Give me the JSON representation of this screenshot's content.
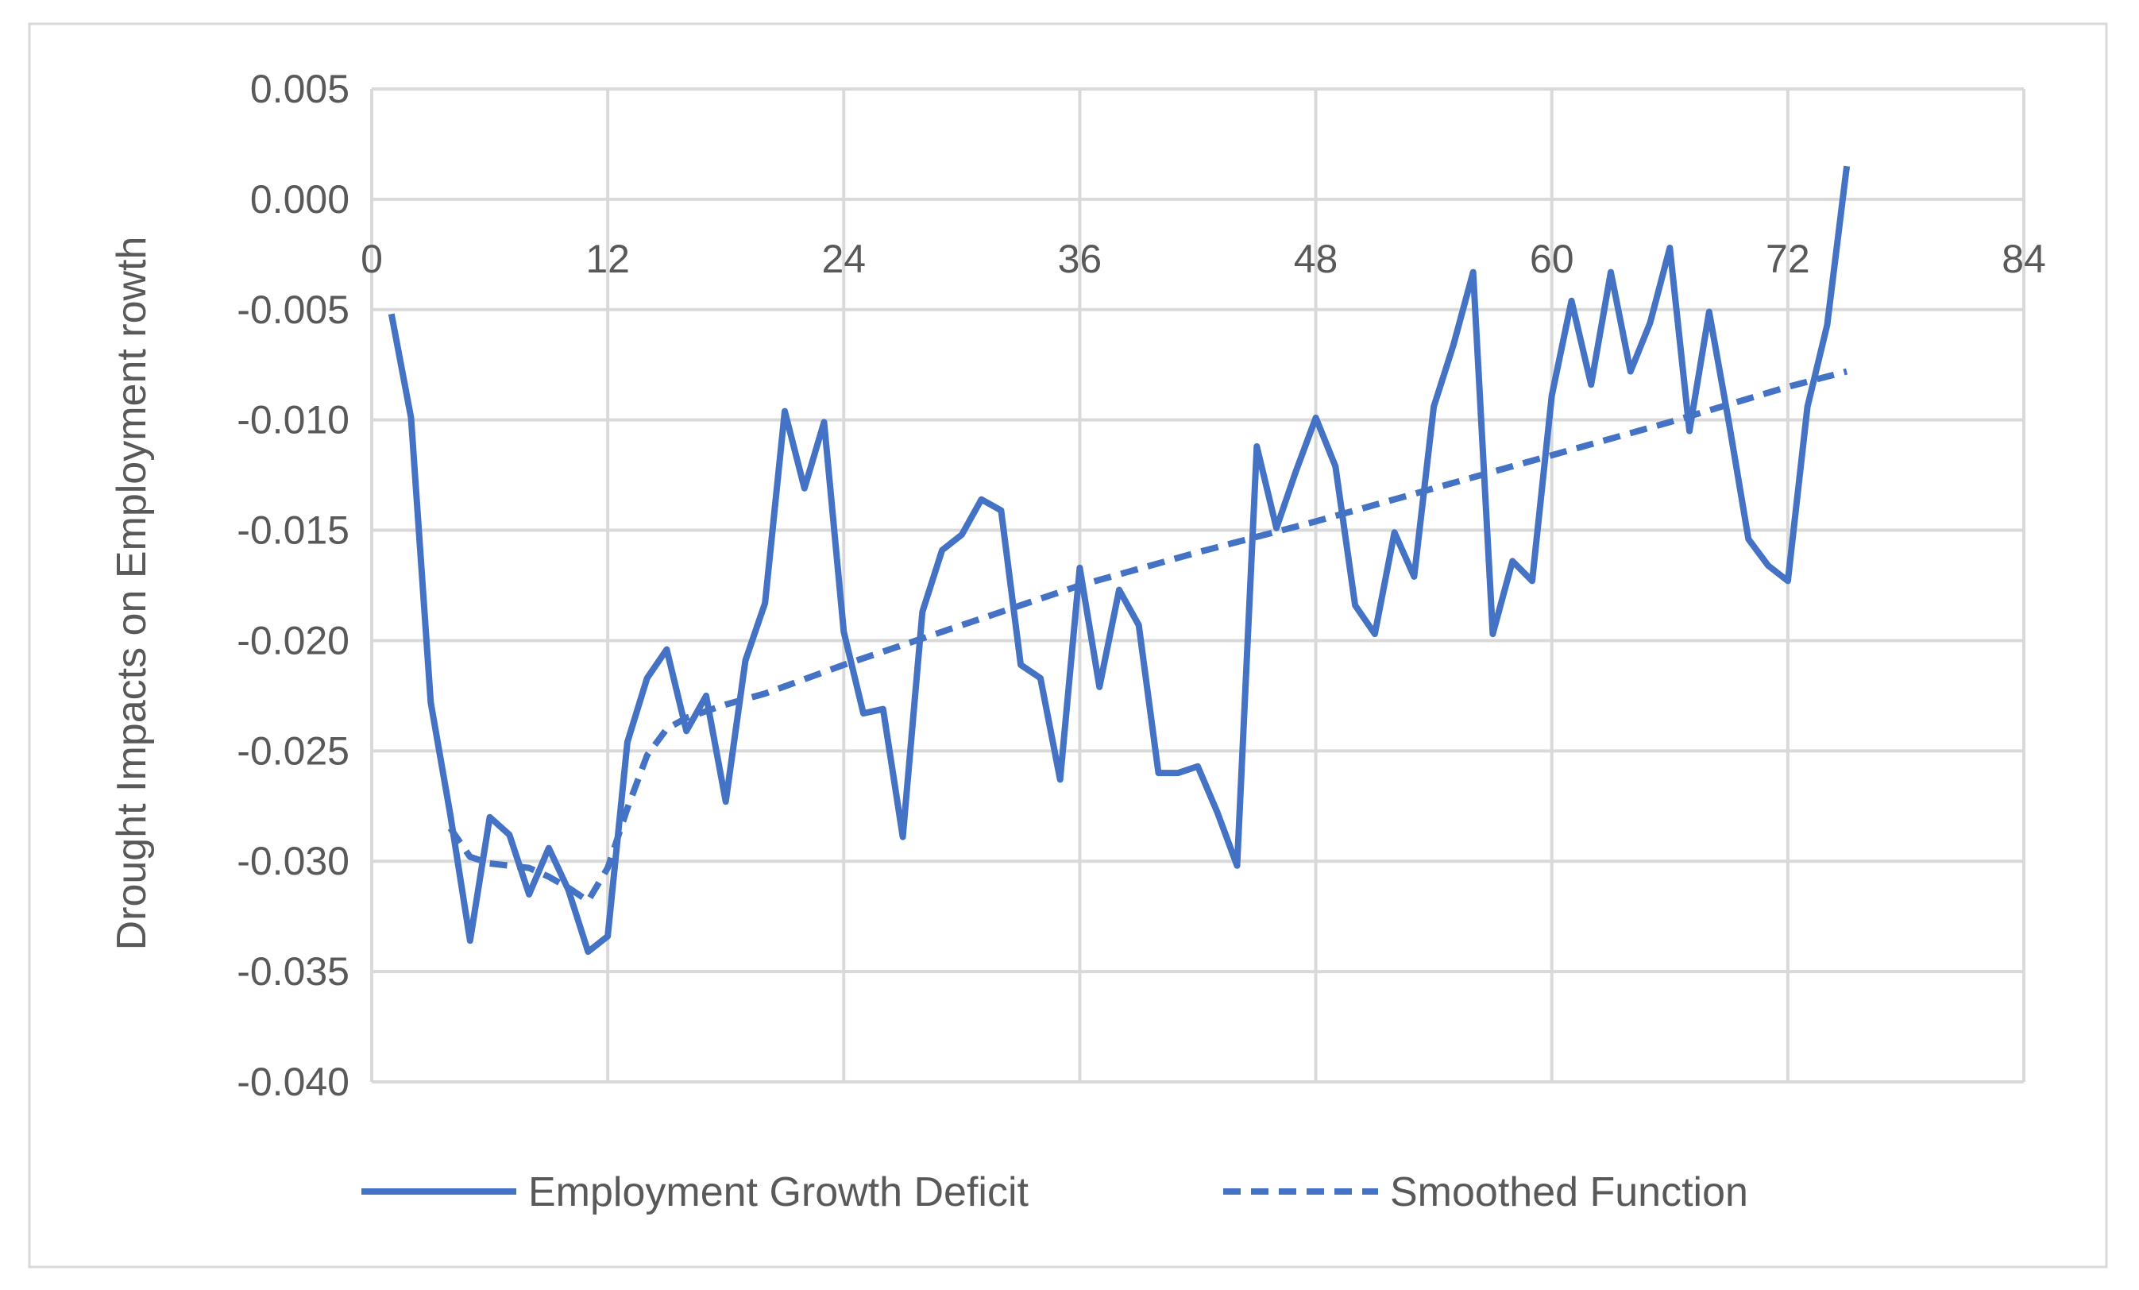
{
  "chart_data": {
    "type": "line",
    "title": "",
    "xlabel": "",
    "ylabel": "Drought  Impacts on Employment rowth",
    "xlim": [
      0,
      84
    ],
    "ylim": [
      -0.04,
      0.005
    ],
    "x_ticks": [
      0,
      12,
      24,
      36,
      48,
      60,
      72,
      84
    ],
    "x_tick_labels": [
      "0",
      "12",
      "24",
      "36",
      "48",
      "60",
      "72",
      "84"
    ],
    "y_ticks": [
      0.005,
      0.0,
      -0.005,
      -0.01,
      -0.015,
      -0.02,
      -0.025,
      -0.03,
      -0.035,
      -0.04
    ],
    "y_tick_labels": [
      "0.005",
      "0.000",
      "-0.005",
      "-0.010",
      "-0.015",
      "-0.020",
      "-0.025",
      "-0.030",
      "-0.035",
      "-0.040"
    ],
    "x_axis_at_y": 0,
    "grid": true,
    "legend_position": "bottom",
    "series": [
      {
        "name": "Employment Growth Deficit",
        "style": "solid",
        "color": "#4472c4",
        "x": [
          1,
          2,
          3,
          4,
          5,
          6,
          7,
          8,
          9,
          10,
          11,
          12,
          13,
          14,
          15,
          16,
          17,
          18,
          19,
          20,
          21,
          22,
          23,
          24,
          25,
          26,
          27,
          28,
          29,
          30,
          31,
          32,
          33,
          34,
          35,
          36,
          37,
          38,
          39,
          40,
          41,
          42,
          43,
          44,
          45,
          46,
          47,
          48,
          49,
          50,
          51,
          52,
          53,
          54,
          55,
          56,
          57,
          58,
          59,
          60,
          61,
          62,
          63,
          64,
          65,
          66,
          67,
          68,
          69,
          70,
          71,
          72,
          73,
          74,
          75
        ],
        "y": [
          -0.0052,
          -0.0099,
          -0.0228,
          -0.0279,
          -0.0336,
          -0.028,
          -0.0288,
          -0.0315,
          -0.0294,
          -0.0313,
          -0.0341,
          -0.0334,
          -0.0246,
          -0.0217,
          -0.0204,
          -0.0241,
          -0.0225,
          -0.0273,
          -0.0209,
          -0.0183,
          -0.0096,
          -0.0131,
          -0.0101,
          -0.0196,
          -0.0233,
          -0.0231,
          -0.0289,
          -0.0187,
          -0.0159,
          -0.0152,
          -0.0136,
          -0.0141,
          -0.0211,
          -0.0217,
          -0.0263,
          -0.0167,
          -0.0221,
          -0.0177,
          -0.0193,
          -0.026,
          -0.026,
          -0.0257,
          -0.0278,
          -0.0302,
          -0.0112,
          -0.0149,
          -0.0123,
          -0.0099,
          -0.0121,
          -0.0184,
          -0.0197,
          -0.0151,
          -0.0171,
          -0.0094,
          -0.0066,
          -0.0033,
          -0.0197,
          -0.0164,
          -0.0173,
          -0.0089,
          -0.0046,
          -0.0084,
          -0.0033,
          -0.0078,
          -0.0056,
          -0.0022,
          -0.0105,
          -0.0051,
          -0.0101,
          -0.0154,
          -0.0166,
          -0.0173,
          -0.0094,
          -0.0057,
          0.0015
        ]
      },
      {
        "name": "Smoothed Function",
        "style": "dashed",
        "color": "#4472c4",
        "x": [
          4,
          5,
          6,
          7,
          8,
          9,
          10,
          11,
          12,
          13,
          14,
          15,
          16,
          17,
          18,
          20,
          24,
          30,
          36,
          42,
          48,
          54,
          60,
          66,
          72,
          75
        ],
        "y": [
          -0.0285,
          -0.0298,
          -0.0301,
          -0.0302,
          -0.0303,
          -0.0307,
          -0.0312,
          -0.0318,
          -0.0303,
          -0.0276,
          -0.0252,
          -0.024,
          -0.0235,
          -0.0232,
          -0.0229,
          -0.0224,
          -0.0211,
          -0.0193,
          -0.0175,
          -0.016,
          -0.0146,
          -0.0131,
          -0.0116,
          -0.0101,
          -0.0085,
          -0.0078
        ]
      }
    ]
  }
}
